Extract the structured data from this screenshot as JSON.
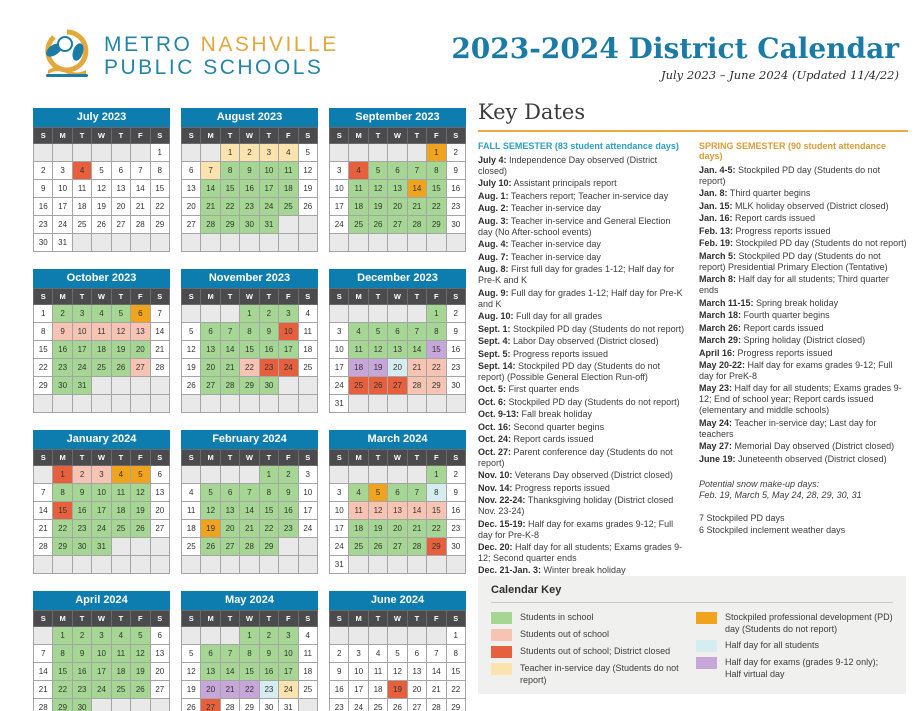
{
  "colors": {
    "green": "#a6d693",
    "pink": "#f7c4b4",
    "red": "#e6603d",
    "tan": "#fbe3ad",
    "gold": "#f0a41e",
    "lightblue": "#d5edf0",
    "purple": "#c7a6da",
    "month_header": "#0d7db0",
    "accent_orange": "#efa83e",
    "logo_teal": "#2585a9",
    "logo_gold": "#e2a83d",
    "title_teal": "#1a7ba6"
  },
  "logo": {
    "word1": "METRO",
    "word2": "NASHVILLE",
    "line2": "PUBLIC SCHOOLS"
  },
  "title": {
    "main": "2023-2024 District Calendar",
    "subtitle": "July 2023 – June 2024 (Updated 11/4/22)"
  },
  "calendar": {
    "dow": [
      "S",
      "M",
      "T",
      "W",
      "T",
      "F",
      "S"
    ],
    "months": [
      {
        "name": "July 2023",
        "start": 6,
        "days": 31,
        "highlights": {
          "red": [
            4
          ]
        }
      },
      {
        "name": "August 2023",
        "start": 2,
        "days": 31,
        "highlights": {
          "tan": [
            1,
            2,
            3,
            4,
            7
          ],
          "green": [
            8,
            9,
            10,
            11,
            14,
            15,
            16,
            17,
            18,
            21,
            22,
            23,
            24,
            25,
            28,
            29,
            30,
            31
          ]
        }
      },
      {
        "name": "September 2023",
        "start": 5,
        "days": 30,
        "highlights": {
          "gold": [
            1,
            14
          ],
          "red": [
            4
          ],
          "green": [
            5,
            6,
            7,
            8,
            11,
            12,
            13,
            15,
            18,
            19,
            20,
            21,
            22,
            25,
            26,
            27,
            28,
            29
          ]
        }
      },
      {
        "name": "October 2023",
        "start": 0,
        "days": 31,
        "highlights": {
          "green": [
            2,
            3,
            4,
            5,
            16,
            17,
            18,
            19,
            20,
            23,
            24,
            25,
            26,
            30,
            31
          ],
          "gold": [
            6
          ],
          "pink": [
            9,
            10,
            11,
            12,
            13,
            27
          ]
        }
      },
      {
        "name": "November 2023",
        "start": 3,
        "days": 30,
        "highlights": {
          "green": [
            1,
            2,
            3,
            6,
            7,
            8,
            9,
            13,
            14,
            15,
            16,
            17,
            20,
            21,
            27,
            28,
            29,
            30
          ],
          "red": [
            10,
            23,
            24
          ],
          "pink": [
            22
          ]
        }
      },
      {
        "name": "December 2023",
        "start": 5,
        "days": 31,
        "highlights": {
          "green": [
            1,
            4,
            5,
            6,
            7,
            8,
            11,
            12,
            13,
            14
          ],
          "purple": [
            15,
            18,
            19
          ],
          "lightblue": [
            20
          ],
          "pink": [
            21,
            22,
            28,
            29
          ],
          "red": [
            25,
            26,
            27
          ]
        }
      },
      {
        "name": "January 2024",
        "start": 1,
        "days": 31,
        "highlights": {
          "red": [
            1,
            15
          ],
          "pink": [
            2,
            3
          ],
          "gold": [
            4,
            5
          ],
          "green": [
            8,
            9,
            10,
            11,
            12,
            16,
            17,
            18,
            19,
            22,
            23,
            24,
            25,
            26,
            29,
            30,
            31
          ]
        }
      },
      {
        "name": "February 2024",
        "start": 4,
        "days": 29,
        "highlights": {
          "green": [
            1,
            2,
            5,
            6,
            7,
            8,
            9,
            12,
            13,
            14,
            15,
            16,
            20,
            21,
            22,
            23,
            26,
            27,
            28,
            29
          ],
          "gold": [
            19
          ]
        }
      },
      {
        "name": "March 2024",
        "start": 5,
        "days": 31,
        "highlights": {
          "green": [
            1,
            4,
            6,
            7,
            18,
            19,
            20,
            21,
            22,
            25,
            26,
            27,
            28
          ],
          "gold": [
            5
          ],
          "lightblue": [
            8
          ],
          "pink": [
            11,
            12,
            13,
            14,
            15
          ],
          "red": [
            29
          ]
        }
      },
      {
        "name": "April 2024",
        "start": 1,
        "days": 30,
        "highlights": {
          "green": [
            1,
            2,
            3,
            4,
            5,
            8,
            9,
            10,
            11,
            12,
            15,
            16,
            17,
            18,
            19,
            22,
            23,
            24,
            25,
            26,
            29,
            30
          ]
        }
      },
      {
        "name": "May 2024",
        "start": 3,
        "days": 31,
        "highlights": {
          "green": [
            1,
            2,
            3,
            6,
            7,
            8,
            9,
            10,
            13,
            14,
            15,
            16,
            17
          ],
          "purple": [
            20,
            21,
            22
          ],
          "lightblue": [
            23
          ],
          "tan": [
            24
          ],
          "red": [
            27
          ]
        }
      },
      {
        "name": "June 2024",
        "start": 6,
        "days": 30,
        "highlights": {
          "red": [
            19
          ]
        }
      }
    ]
  },
  "key_dates": {
    "title": "Key Dates",
    "fall": {
      "heading": "FALL SEMESTER (83 student attendance days)",
      "items": [
        {
          "d": "July 4:",
          "t": "Independence Day observed (District closed)"
        },
        {
          "d": "July 10:",
          "t": "Assistant principals report"
        },
        {
          "d": "Aug. 1:",
          "t": "Teachers report; Teacher in-service day"
        },
        {
          "d": "Aug. 2:",
          "t": "Teacher in-service day"
        },
        {
          "d": "Aug. 3:",
          "t": "Teacher in-service and General Election day (No After-school events)"
        },
        {
          "d": "Aug. 4:",
          "t": "Teacher in-service day"
        },
        {
          "d": "Aug. 7:",
          "t": "Teacher in-service day"
        },
        {
          "d": "Aug. 8:",
          "t": "First full day for grades 1-12; Half day for Pre-K and K"
        },
        {
          "d": "Aug. 9:",
          "t": "Full day for grades 1-12; Half day for Pre-K and K"
        },
        {
          "d": "Aug. 10:",
          "t": "Full day for all grades"
        },
        {
          "d": "Sept. 1:",
          "t": "Stockpiled PD day (Students do not report)"
        },
        {
          "d": "Sept. 4:",
          "t": "Labor Day observed (District closed)"
        },
        {
          "d": "Sept. 5:",
          "t": "Progress reports issued"
        },
        {
          "d": "Sept. 14:",
          "t": "Stockpiled PD day (Students do not report) (Possible General Election Run-off)"
        },
        {
          "d": "Oct. 5:",
          "t": "First quarter ends"
        },
        {
          "d": "Oct. 6:",
          "t": "Stockpiled PD day (Students do not report)"
        },
        {
          "d": "Oct. 9-13:",
          "t": "Fall break holiday"
        },
        {
          "d": "Oct. 16:",
          "t": "Second quarter begins"
        },
        {
          "d": "Oct. 24:",
          "t": "Report cards issued"
        },
        {
          "d": "Oct. 27:",
          "t": "Parent conference day (Students do not report)"
        },
        {
          "d": "Nov. 10:",
          "t": "Veterans Day observed (District closed)"
        },
        {
          "d": "Nov. 14:",
          "t": "Progress reports issued"
        },
        {
          "d": "Nov. 22-24:",
          "t": "Thanksgiving holiday (District closed Nov. 23-24)"
        },
        {
          "d": "Dec. 15-19:",
          "t": "Half day for exams grades 9-12; Full day for Pre-K-8"
        },
        {
          "d": "Dec. 20:",
          "t": "Half day for all students; Exams grades 9-12; Second quarter ends"
        },
        {
          "d": "Dec. 21-Jan. 3:",
          "t": "Winter break holiday"
        }
      ]
    },
    "spring": {
      "heading": "SPRING SEMESTER (90 student attendance days)",
      "items": [
        {
          "d": "Jan. 4-5:",
          "t": "Stockpiled PD day (Students do not report)"
        },
        {
          "d": "Jan. 8:",
          "t": "Third quarter begins"
        },
        {
          "d": "Jan. 15:",
          "t": "MLK holiday observed (District closed)"
        },
        {
          "d": "Jan. 16:",
          "t": "Report cards issued"
        },
        {
          "d": "Feb. 13:",
          "t": "Progress reports issued"
        },
        {
          "d": "Feb. 19:",
          "t": "Stockpiled PD day (Students do not report)"
        },
        {
          "d": "March 5:",
          "t": "Stockpiled PD day (Students do not report) Presidential Primary Election (Tentative)"
        },
        {
          "d": "March 8:",
          "t": "Half day for all students; Third quarter ends"
        },
        {
          "d": "March 11-15:",
          "t": "Spring break holiday"
        },
        {
          "d": "March 18:",
          "t": "Fourth quarter begins"
        },
        {
          "d": "March 26:",
          "t": "Report cards issued"
        },
        {
          "d": "March 29:",
          "t": "Spring holiday (District closed)"
        },
        {
          "d": "April 16:",
          "t": "Progress reports issued"
        },
        {
          "d": "May 20-22:",
          "t": "Half day for exams grades 9-12; Full day for PreK-8"
        },
        {
          "d": "May 23:",
          "t": "Half day for all students; Exams grades 9-12; End of school year; Report cards issued (elementary and middle schools)"
        },
        {
          "d": "May 24:",
          "t": "Teacher in-service day; Last day for teachers"
        },
        {
          "d": "May 27:",
          "t": "Memorial Day observed (District closed)"
        },
        {
          "d": "June 19:",
          "t": "Juneteenth observed (District closed)"
        }
      ]
    },
    "notes": {
      "snow_title": "Potential snow make-up days:",
      "snow_days": "Feb. 19, March 5, May 24, 28, 29, 30, 31",
      "pd_count": "7 Stockpiled PD days",
      "weather_count": "6 Stockpiled inclement weather days"
    }
  },
  "calendar_key": {
    "title": "Calendar Key",
    "left": [
      {
        "color": "green",
        "label": "Students in school"
      },
      {
        "color": "pink",
        "label": "Students out of school"
      },
      {
        "color": "red",
        "label": "Students out of school; District closed"
      },
      {
        "color": "tan",
        "label": "Teacher in-service day (Students do not report)"
      }
    ],
    "right": [
      {
        "color": "gold",
        "label": "Stockpiled professional development (PD) day (Students do not report)"
      },
      {
        "color": "lightblue",
        "label": "Half day for all students"
      },
      {
        "color": "purple",
        "label": "Half day for exams (grades 9-12 only); Half virtual day"
      }
    ]
  }
}
